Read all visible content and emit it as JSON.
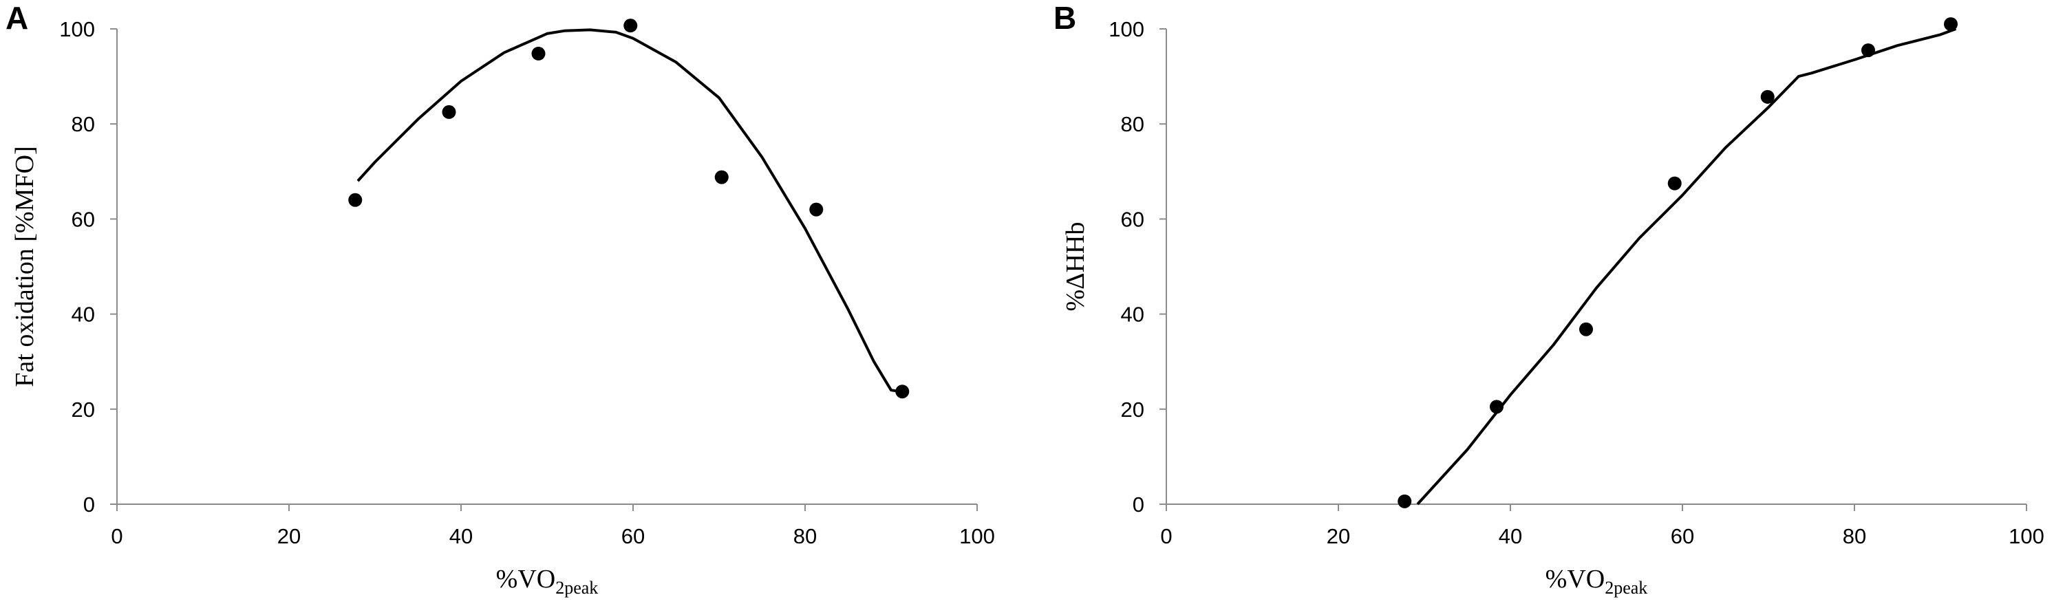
{
  "chart_data": [
    {
      "panel_label": "A",
      "type": "scatter",
      "xlabel_main": "%VO",
      "xlabel_sub": "2peak",
      "ylabel": "Fat oxidation [%MFO]",
      "xlim": [
        0,
        100
      ],
      "ylim": [
        0,
        100
      ],
      "xticks": [
        "0",
        "20",
        "40",
        "60",
        "80",
        "100"
      ],
      "yticks": [
        "0",
        "20",
        "40",
        "60",
        "80",
        "100"
      ],
      "grid": false,
      "series": [
        {
          "kind": "points",
          "x": [
            27.7,
            38.6,
            49.0,
            59.7,
            70.3,
            81.3,
            91.3
          ],
          "y": [
            64.0,
            82.5,
            94.8,
            100.7,
            68.8,
            62.0,
            23.7
          ]
        },
        {
          "kind": "line",
          "x": [
            28.0,
            30,
            35,
            40,
            45,
            50,
            52,
            55,
            58,
            60,
            65,
            70,
            75,
            80,
            85,
            88,
            90,
            91.8
          ],
          "y": [
            68.0,
            72,
            81,
            89,
            95,
            99,
            99.6,
            99.8,
            99.3,
            98,
            93,
            85.5,
            73,
            58,
            41,
            30,
            24,
            23.5
          ]
        }
      ]
    },
    {
      "panel_label": "B",
      "type": "scatter",
      "xlabel_main": "%VO",
      "xlabel_sub": "2peak",
      "ylabel": "%ΔHHb",
      "xlim": [
        0,
        100
      ],
      "ylim": [
        0,
        100
      ],
      "xticks": [
        "0",
        "20",
        "40",
        "60",
        "80",
        "100"
      ],
      "yticks": [
        "0",
        "20",
        "40",
        "60",
        "80",
        "100"
      ],
      "grid": false,
      "series": [
        {
          "kind": "points",
          "x": [
            27.7,
            38.4,
            48.8,
            59.1,
            69.9,
            81.6,
            91.2
          ],
          "y": [
            0.6,
            20.5,
            36.8,
            67.5,
            85.7,
            95.5,
            101.0
          ]
        },
        {
          "kind": "line",
          "x": [
            29.2,
            35,
            40,
            45,
            50,
            55,
            60,
            65,
            70,
            73.5,
            75,
            80,
            85,
            90,
            91.8
          ],
          "y": [
            0,
            11.5,
            23,
            33.5,
            45.5,
            56,
            65,
            75,
            83.5,
            90,
            90.7,
            93.5,
            96.5,
            98.8,
            100
          ]
        }
      ]
    }
  ]
}
